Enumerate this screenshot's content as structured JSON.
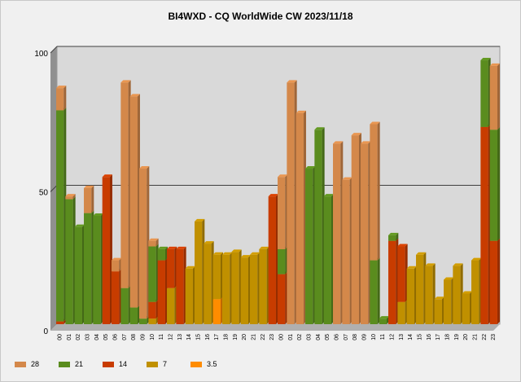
{
  "title": "BI4WXD - CQ WorldWide CW 2023/11/18",
  "chart_data": {
    "type": "bar",
    "stacked": true,
    "grid": true,
    "ylim": [
      0,
      100
    ],
    "yticks": [
      0,
      50,
      100
    ],
    "categories": [
      "00",
      "01",
      "02",
      "03",
      "04",
      "05",
      "06",
      "07",
      "08",
      "09",
      "10",
      "11",
      "12",
      "13",
      "14",
      "15",
      "16",
      "17",
      "18",
      "19",
      "20",
      "21",
      "22",
      "23",
      "00",
      "01",
      "02",
      "03",
      "04",
      "05",
      "06",
      "07",
      "08",
      "09",
      "10",
      "11",
      "12",
      "13",
      "14",
      "15",
      "16",
      "17",
      "18",
      "19",
      "20",
      "21",
      "22",
      "23"
    ],
    "series": [
      {
        "name": "3.5",
        "color": "#ff8c00",
        "values": [
          0,
          0,
          0,
          0,
          0,
          0,
          0,
          0,
          0,
          0,
          0,
          0,
          0,
          0,
          0,
          0,
          0,
          9,
          0,
          0,
          0,
          0,
          0,
          0,
          0,
          0,
          0,
          0,
          0,
          0,
          0,
          0,
          0,
          0,
          0,
          0,
          0,
          0,
          0,
          0,
          0,
          0,
          0,
          0,
          0,
          0,
          0,
          0
        ]
      },
      {
        "name": "7",
        "color": "#c09000",
        "values": [
          0,
          0,
          0,
          0,
          0,
          0,
          0,
          0,
          0,
          0,
          2,
          0,
          13,
          0,
          20,
          37,
          29,
          16,
          25,
          26,
          24,
          25,
          27,
          0,
          0,
          0,
          0,
          0,
          0,
          0,
          0,
          0,
          0,
          0,
          0,
          0,
          0,
          8,
          20,
          25,
          21,
          9,
          16,
          21,
          11,
          23,
          0,
          0
        ]
      },
      {
        "name": "14",
        "color": "#c83c00",
        "values": [
          1,
          0,
          0,
          0,
          0,
          53,
          19,
          0,
          0,
          0,
          6,
          23,
          14,
          27,
          0,
          0,
          0,
          0,
          0,
          0,
          0,
          0,
          0,
          46,
          18,
          0,
          0,
          0,
          0,
          0,
          0,
          0,
          0,
          0,
          0,
          0,
          30,
          20,
          0,
          0,
          0,
          0,
          0,
          0,
          0,
          0,
          71,
          30
        ]
      },
      {
        "name": "21",
        "color": "#5a8c1e",
        "values": [
          76,
          45,
          35,
          40,
          39,
          0,
          0,
          13,
          6,
          2,
          20,
          4,
          0,
          0,
          0,
          0,
          0,
          0,
          0,
          0,
          0,
          0,
          0,
          0,
          9,
          0,
          0,
          56,
          70,
          46,
          0,
          0,
          0,
          0,
          23,
          2,
          2,
          0,
          0,
          0,
          0,
          0,
          0,
          0,
          0,
          0,
          24,
          40
        ]
      },
      {
        "name": "28",
        "color": "#d4884a",
        "values": [
          8,
          1,
          0,
          9,
          0,
          0,
          4,
          74,
          76,
          54,
          2,
          0,
          0,
          0,
          0,
          0,
          0,
          0,
          0,
          0,
          0,
          0,
          0,
          0,
          26,
          87,
          76,
          0,
          0,
          0,
          65,
          52,
          68,
          65,
          49,
          0,
          0,
          0,
          0,
          0,
          0,
          0,
          0,
          0,
          0,
          0,
          0,
          23
        ]
      }
    ]
  }
}
